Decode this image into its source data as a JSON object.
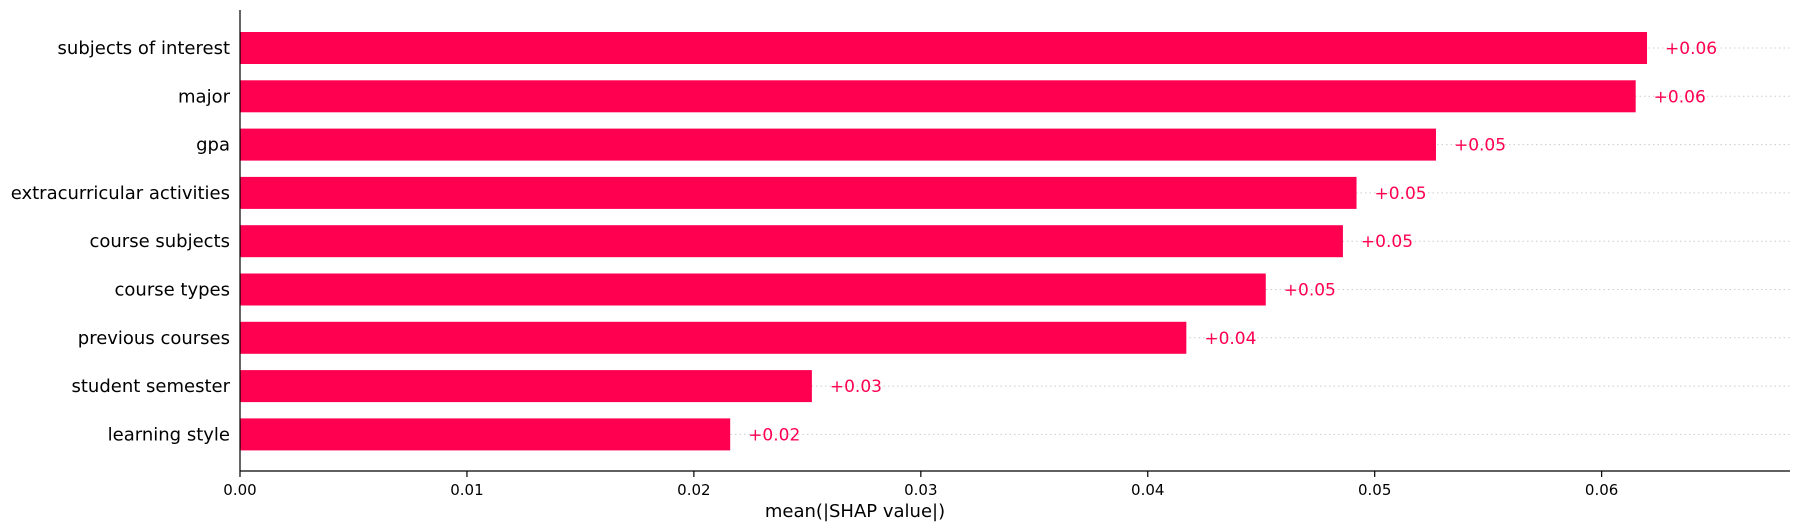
{
  "chart_data": {
    "type": "bar",
    "orientation": "horizontal",
    "categories": [
      "subjects of interest",
      "major",
      "gpa",
      "extracurricular activities",
      "course subjects",
      "course types",
      "previous courses",
      "student semester",
      "learning style"
    ],
    "values": [
      0.062,
      0.0615,
      0.0527,
      0.0492,
      0.0486,
      0.0452,
      0.0417,
      0.0252,
      0.0216
    ],
    "value_labels": [
      "+0.06",
      "+0.06",
      "+0.05",
      "+0.05",
      "+0.05",
      "+0.05",
      "+0.04",
      "+0.03",
      "+0.02"
    ],
    "xlabel": "mean(|SHAP value|)",
    "ylabel": "",
    "title": "",
    "xlim": [
      0,
      0.0683
    ],
    "xticks": [
      "0.00",
      "0.01",
      "0.02",
      "0.03",
      "0.04",
      "0.05",
      "0.06"
    ],
    "xtick_values": [
      0,
      0.01,
      0.02,
      0.03,
      0.04,
      0.05,
      0.06
    ],
    "grid": "dotted horizontal guide lines behind bars",
    "legend": "none",
    "colors": {
      "bar": "#ff0051",
      "label": "#ff0051",
      "axis": "#000000",
      "guide": "#cccccc"
    }
  }
}
